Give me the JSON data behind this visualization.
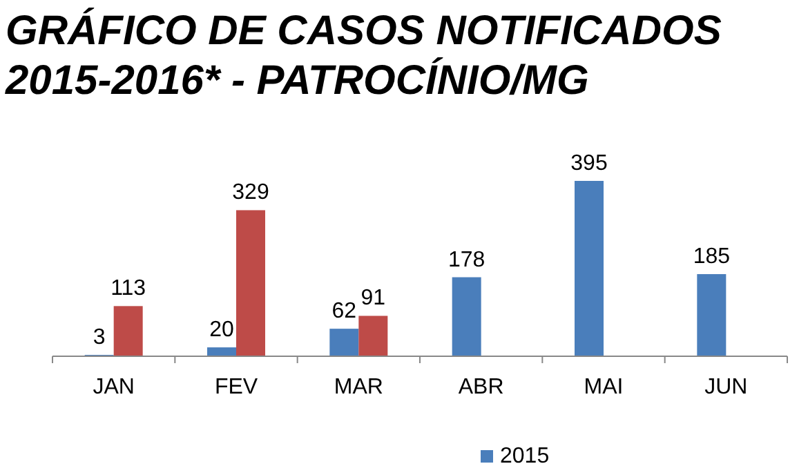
{
  "chart_data": {
    "type": "bar",
    "title": "GRÁFICO DE CASOS NOTIFICADOS\n2015-2016* - PATROCÍNIO/MG",
    "categories": [
      "JAN",
      "FEV",
      "MAR",
      "ABR",
      "MAI",
      "JUN"
    ],
    "series": [
      {
        "name": "2015",
        "color": "#4a7ebb",
        "values": [
          3,
          20,
          62,
          178,
          395,
          185
        ]
      },
      {
        "color": "#be4b48",
        "values": [
          113,
          329,
          91,
          null,
          null,
          null
        ]
      }
    ],
    "data_labels": true,
    "legend": "bottom",
    "grid": false
  }
}
